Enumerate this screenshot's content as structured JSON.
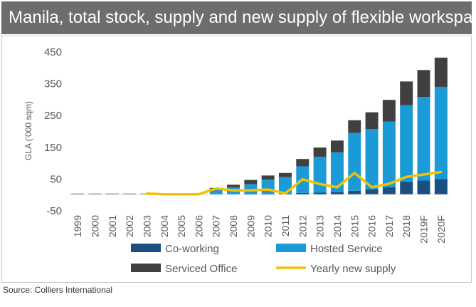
{
  "header": {
    "title": "Manila, total stock, supply and new supply of flexible workspaces"
  },
  "footer": {
    "source": "Source: Colliers International"
  },
  "colors": {
    "coworking": "#1b4f80",
    "hosted": "#1a9ad6",
    "serviced": "#404040",
    "line": "#f2c200",
    "axis": "#d9d9d9",
    "text": "#595959"
  },
  "chart_data": {
    "type": "bar",
    "stacked": true,
    "title": "",
    "ylabel": "GLA ('000 sqm)",
    "xlabel": "",
    "ylim": [
      -50,
      450
    ],
    "yticks": [
      -50,
      50,
      150,
      250,
      350,
      450
    ],
    "categories": [
      "1999",
      "2000",
      "2001",
      "2002",
      "2003",
      "2004",
      "2005",
      "2006",
      "2007",
      "2008",
      "2009",
      "2010",
      "2011",
      "2012",
      "2013",
      "2014",
      "2015",
      "2016",
      "2017",
      "2018",
      "2019F",
      "2020F"
    ],
    "series": [
      {
        "name": "Co-working",
        "kind": "bar",
        "color_key": "coworking",
        "values": [
          0,
          0,
          0,
          0,
          0,
          0,
          0,
          0,
          1,
          1,
          2,
          2,
          2,
          4,
          5,
          7,
          11,
          15,
          22,
          40,
          43,
          48
        ]
      },
      {
        "name": "Hosted Service",
        "kind": "bar",
        "color_key": "hosted",
        "values": [
          1,
          1,
          1,
          1,
          1,
          0,
          0,
          0,
          14,
          20,
          30,
          44,
          52,
          84,
          113,
          125,
          182,
          190,
          207,
          240,
          263,
          290
        ]
      },
      {
        "name": "Serviced Office",
        "kind": "bar",
        "color_key": "serviced",
        "values": [
          1,
          1,
          1,
          1,
          1,
          0,
          0,
          0,
          5,
          9,
          13,
          13,
          13,
          23,
          29,
          37,
          40,
          53,
          68,
          75,
          85,
          92
        ]
      },
      {
        "name": "Yearly new supply",
        "kind": "line",
        "color_key": "line",
        "values": [
          null,
          null,
          null,
          null,
          2,
          0,
          0,
          0,
          18,
          12,
          12,
          15,
          3,
          47,
          32,
          22,
          67,
          22,
          33,
          55,
          62,
          70
        ]
      }
    ],
    "legend": [
      {
        "name": "Co-working",
        "color_key": "coworking",
        "kind": "bar"
      },
      {
        "name": "Hosted Service",
        "color_key": "hosted",
        "kind": "bar"
      },
      {
        "name": "Serviced Office",
        "color_key": "serviced",
        "kind": "bar"
      },
      {
        "name": "Yearly new supply",
        "color_key": "line",
        "kind": "line"
      }
    ],
    "legend_position": "bottom"
  }
}
